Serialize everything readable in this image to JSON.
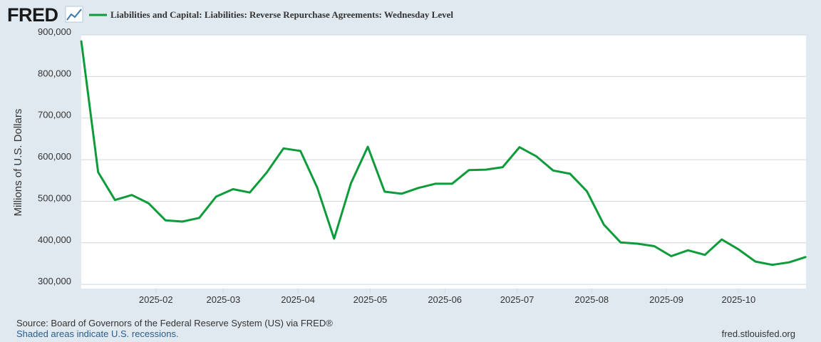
{
  "header": {
    "logo_text": "FRED",
    "logo_icon": "fred-chart-icon"
  },
  "chart_data": {
    "type": "line",
    "title": "Liabilities and Capital: Liabilities: Reverse Repurchase Agreements: Wednesday Level",
    "xlabel": "",
    "ylabel": "Millions of U.S. Dollars",
    "ylim": [
      290000,
      900000
    ],
    "y_ticks": [
      300000,
      400000,
      500000,
      600000,
      700000,
      800000,
      900000
    ],
    "y_tick_labels": [
      "300,000",
      "400,000",
      "500,000",
      "600,000",
      "700,000",
      "800,000",
      "900,000"
    ],
    "x_range": [
      "2025-01-01",
      "2025-10-29"
    ],
    "x_ticks": [
      "2025-02-01",
      "2025-03-01",
      "2025-04-01",
      "2025-05-01",
      "2025-06-01",
      "2025-07-01",
      "2025-08-01",
      "2025-09-01",
      "2025-10-01"
    ],
    "x_tick_labels": [
      "2025-02",
      "2025-03",
      "2025-04",
      "2025-05",
      "2025-06",
      "2025-07",
      "2025-08",
      "2025-09",
      "2025-10"
    ],
    "grid": true,
    "legend": "top-left",
    "series": [
      {
        "name": "Liabilities and Capital: Liabilities: Reverse Repurchase Agreements: Wednesday Level",
        "color": "#0e9c3b",
        "x": [
          "2025-01-01",
          "2025-01-08",
          "2025-01-15",
          "2025-01-22",
          "2025-01-29",
          "2025-02-05",
          "2025-02-12",
          "2025-02-19",
          "2025-02-26",
          "2025-03-05",
          "2025-03-12",
          "2025-03-19",
          "2025-03-26",
          "2025-04-02",
          "2025-04-09",
          "2025-04-16",
          "2025-04-23",
          "2025-04-30",
          "2025-05-07",
          "2025-05-14",
          "2025-05-21",
          "2025-05-28",
          "2025-06-04",
          "2025-06-11",
          "2025-06-18",
          "2025-06-25",
          "2025-07-02",
          "2025-07-09",
          "2025-07-16",
          "2025-07-23",
          "2025-07-30",
          "2025-08-06",
          "2025-08-13",
          "2025-08-20",
          "2025-08-27",
          "2025-09-03",
          "2025-09-10",
          "2025-09-17",
          "2025-09-24",
          "2025-10-01",
          "2025-10-08",
          "2025-10-15",
          "2025-10-22",
          "2025-10-29"
        ],
        "values": [
          886000,
          570000,
          503000,
          515000,
          495000,
          454000,
          451000,
          460000,
          511000,
          529000,
          521000,
          569000,
          627000,
          621000,
          533000,
          410000,
          543000,
          631000,
          523000,
          518000,
          532000,
          542000,
          542000,
          575000,
          576000,
          582000,
          630000,
          608000,
          574000,
          566000,
          524000,
          444000,
          401000,
          398000,
          392000,
          368000,
          382000,
          371000,
          408000,
          384000,
          355000,
          347000,
          353000,
          366000
        ]
      }
    ]
  },
  "footer": {
    "source": "Source: Board of Governors of the Federal Reserve System (US) via FRED®",
    "recession_note": "Shaded areas indicate U.S. recessions.",
    "site": "fred.stlouisfed.org"
  }
}
